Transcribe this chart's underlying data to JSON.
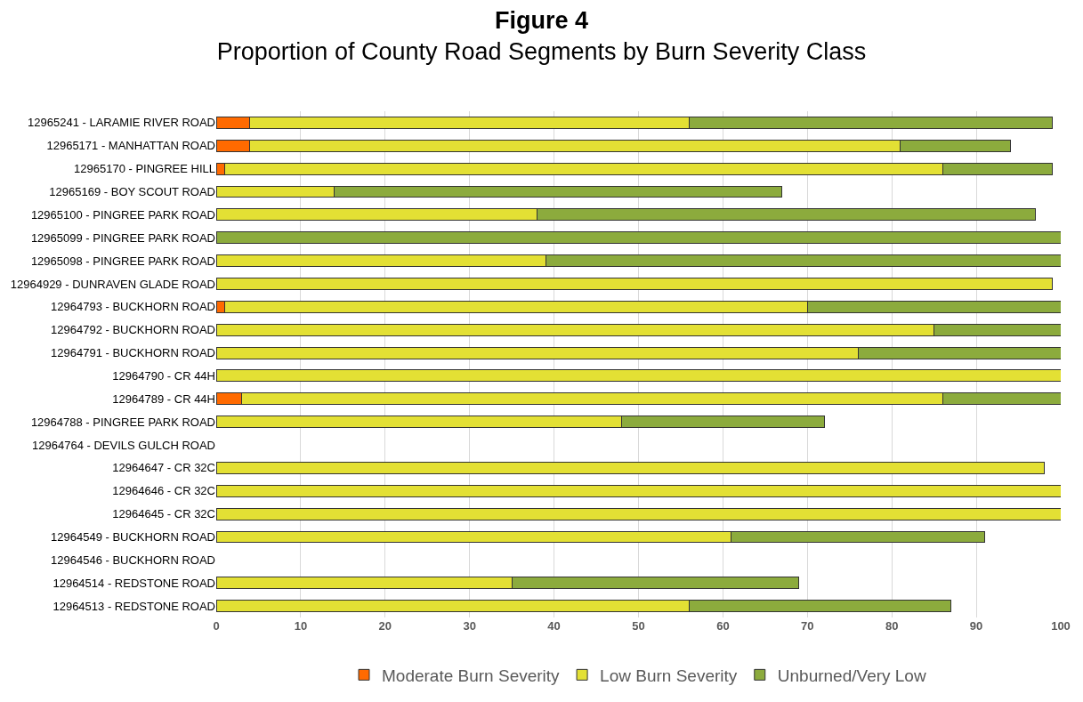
{
  "chart_data": {
    "type": "bar",
    "orientation": "horizontal",
    "stacked": true,
    "title": "Figure 4",
    "subtitle": "Proportion of County Road Segments by Burn Severity Class",
    "categories": [
      "12965241 - LARAMIE RIVER ROAD",
      "12965171 - MANHATTAN ROAD",
      "12965170 - PINGREE HILL",
      "12965169 - BOY SCOUT ROAD",
      "12965100 - PINGREE PARK ROAD",
      "12965099 - PINGREE PARK ROAD",
      "12965098 - PINGREE PARK ROAD",
      "12964929 - DUNRAVEN GLADE ROAD",
      "12964793 - BUCKHORN ROAD",
      "12964792 - BUCKHORN ROAD",
      "12964791 - BUCKHORN ROAD",
      "12964790 - CR 44H",
      "12964789 - CR 44H",
      "12964788 - PINGREE PARK ROAD",
      "12964764 - DEVILS GULCH ROAD",
      "12964647 - CR 32C",
      "12964646 - CR 32C",
      "12964645 - CR 32C",
      "12964549 - BUCKHORN ROAD",
      "12964546 - BUCKHORN ROAD",
      "12964514 - REDSTONE ROAD",
      "12964513 - REDSTONE ROAD"
    ],
    "series": [
      {
        "name": "Moderate Burn Severity",
        "color": "#ff6a00",
        "values": [
          4,
          4,
          1,
          null,
          null,
          null,
          null,
          null,
          1,
          null,
          null,
          null,
          3,
          null,
          null,
          null,
          null,
          null,
          null,
          null,
          null,
          null
        ]
      },
      {
        "name": "Low Burn Severity",
        "color": "#e3e034",
        "values": [
          52,
          77,
          85,
          14,
          38,
          null,
          39,
          99,
          69,
          85,
          76,
          100,
          83,
          48,
          null,
          98,
          100,
          100,
          61,
          null,
          35,
          56
        ]
      },
      {
        "name": "Unburned/Very Low",
        "color": "#8cab3d",
        "values": [
          43,
          13,
          13,
          53,
          59,
          100,
          61,
          null,
          30,
          15,
          24,
          null,
          14,
          24,
          null,
          null,
          null,
          null,
          30,
          null,
          34,
          31
        ]
      }
    ],
    "xlim": [
      0,
      100
    ],
    "xticks": [
      0,
      10,
      20,
      30,
      40,
      50,
      60,
      70,
      80,
      90,
      100
    ],
    "grid": "x",
    "legend": "bottom"
  }
}
